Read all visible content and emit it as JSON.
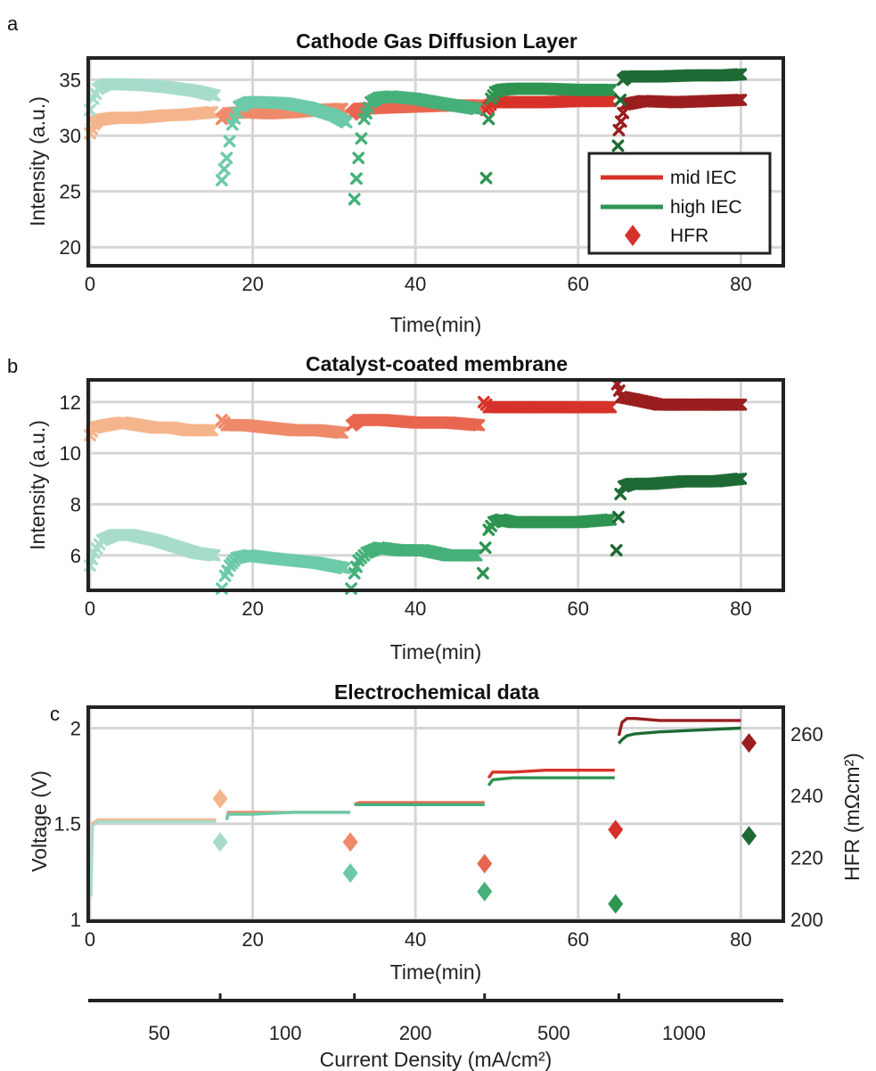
{
  "panel_labels": [
    "a",
    "b",
    "c"
  ],
  "segment_colors": {
    "mid": [
      "#f5b58c",
      "#ee8a6a",
      "#e8664f",
      "#d7322a",
      "#9a1e1e"
    ],
    "high": [
      "#a7dccd",
      "#6ccaa8",
      "#45b07a",
      "#2e9451",
      "#1e6a34"
    ]
  },
  "chart_data": [
    {
      "type": "scatter",
      "title": "Cathode Gas Diffusion Layer",
      "xlabel": "Time(min)",
      "ylabel": "Intensity (a.u.)",
      "xlim": [
        0,
        85
      ],
      "ylim": [
        18.5,
        36.8
      ],
      "xticks": [
        0,
        20,
        40,
        60,
        80
      ],
      "yticks": [
        20,
        25,
        30,
        35
      ],
      "grid": true,
      "marker": "x",
      "legend": {
        "placement": "lower-right",
        "entries": [
          {
            "label": "mid IEC",
            "kind": "line",
            "color": "#d7322a"
          },
          {
            "label": "high IEC",
            "kind": "line",
            "color": "#2e9451"
          },
          {
            "label": "HFR",
            "kind": "diamond",
            "color": "#d7322a"
          }
        ]
      },
      "series": [
        {
          "group": "mid",
          "segments": [
            {
              "x": [
                0,
                0.5,
                1,
                3,
                6,
                9,
                12,
                15
              ],
              "y": [
                30.2,
                31.0,
                31.4,
                31.6,
                31.6,
                31.8,
                31.9,
                32.1
              ]
            },
            {
              "x": [
                16.2,
                17,
                19,
                22,
                25,
                28,
                31
              ],
              "y": [
                31.5,
                32.0,
                32.1,
                32.0,
                32.1,
                32.3,
                32.4
              ]
            },
            {
              "x": [
                32.2,
                33,
                36,
                40,
                44,
                48
              ],
              "y": [
                31.9,
                32.4,
                32.5,
                32.6,
                32.7,
                32.7
              ]
            },
            {
              "x": [
                48.7,
                49.5,
                52,
                56,
                60,
                64
              ],
              "y": [
                32.3,
                33.0,
                33.0,
                33.0,
                33.1,
                33.1
              ]
            },
            {
              "x": [
                65,
                65.8,
                68,
                72,
                76,
                80
              ],
              "y": [
                30.5,
                32.8,
                33.1,
                33.0,
                33.1,
                33.2
              ]
            }
          ]
        },
        {
          "group": "high",
          "segments": [
            {
              "x": [
                0,
                0.4,
                1,
                2,
                4,
                7,
                10,
                13,
                15.3
              ],
              "y": [
                32.3,
                33.3,
                34.2,
                34.6,
                34.6,
                34.5,
                34.3,
                34.0,
                33.6
              ]
            },
            {
              "x": [
                16.2,
                16.8,
                17.5,
                18.3,
                19.5,
                21,
                24,
                27,
                30,
                31.5
              ],
              "y": [
                26.0,
                28.0,
                31.0,
                32.6,
                33.0,
                33.0,
                32.9,
                32.5,
                31.8,
                31.2
              ]
            },
            {
              "x": [
                32.5,
                33,
                33.7,
                34.5,
                35.5,
                37,
                40,
                44,
                47.5
              ],
              "y": [
                24.3,
                28.0,
                31.5,
                33.0,
                33.4,
                33.5,
                33.3,
                32.8,
                32.4
              ]
            },
            {
              "x": [
                48.7,
                49,
                49.3,
                49.8,
                50.5,
                52,
                56,
                60,
                64
              ],
              "y": [
                26.2,
                31.5,
                33.3,
                33.9,
                34.1,
                34.2,
                34.2,
                34.1,
                34.1
              ]
            },
            {
              "x": [
                64.9,
                65.2,
                65.5,
                66,
                67,
                70,
                74,
                78,
                80
              ],
              "y": [
                29.1,
                33.2,
                35.0,
                35.3,
                35.3,
                35.3,
                35.4,
                35.4,
                35.5
              ]
            }
          ]
        }
      ]
    },
    {
      "type": "scatter",
      "title": "Catalyst-coated membrane",
      "xlabel": "Time(min)",
      "ylabel": "Intensity (a.u.)",
      "xlim": [
        0,
        85
      ],
      "ylim": [
        4.7,
        12.8
      ],
      "xticks": [
        0,
        20,
        40,
        60,
        80
      ],
      "yticks": [
        6,
        8,
        10,
        12
      ],
      "grid": true,
      "marker": "x",
      "series": [
        {
          "group": "mid",
          "segments": [
            {
              "x": [
                0,
                0.5,
                2,
                4,
                6,
                8,
                10,
                12,
                15
              ],
              "y": [
                10.7,
                11.0,
                11.1,
                11.2,
                11.1,
                11.0,
                11.0,
                10.9,
                10.9
              ]
            },
            {
              "x": [
                16.2,
                16.8,
                19,
                22,
                25,
                28,
                31
              ],
              "y": [
                11.3,
                11.1,
                11.1,
                11.0,
                10.9,
                10.9,
                10.8
              ]
            },
            {
              "x": [
                32.2,
                33,
                36,
                40,
                44,
                47.8
              ],
              "y": [
                11.1,
                11.3,
                11.3,
                11.2,
                11.2,
                11.1
              ]
            },
            {
              "x": [
                48.4,
                49,
                52,
                56,
                60,
                64
              ],
              "y": [
                12.0,
                11.8,
                11.8,
                11.8,
                11.8,
                11.8
              ]
            },
            {
              "x": [
                64.8,
                65.3,
                67,
                70,
                74,
                78,
                80
              ],
              "y": [
                12.7,
                12.2,
                12.1,
                11.9,
                11.9,
                11.9,
                11.9
              ]
            }
          ]
        },
        {
          "group": "high",
          "segments": [
            {
              "x": [
                0,
                0.5,
                1.5,
                3,
                5,
                8,
                11,
                13,
                15.3
              ],
              "y": [
                5.6,
                6.1,
                6.6,
                6.8,
                6.8,
                6.6,
                6.3,
                6.1,
                6.0
              ]
            },
            {
              "x": [
                16.2,
                16.6,
                17.2,
                18,
                19.5,
                22,
                25,
                28,
                31.3
              ],
              "y": [
                4.7,
                5.2,
                5.6,
                5.9,
                6.0,
                5.9,
                5.8,
                5.7,
                5.5
              ]
            },
            {
              "x": [
                32.1,
                32.5,
                33,
                34,
                35.5,
                38,
                41,
                44,
                47.5
              ],
              "y": [
                4.7,
                5.3,
                5.8,
                6.1,
                6.3,
                6.2,
                6.2,
                6.0,
                6.0
              ]
            },
            {
              "x": [
                48.3,
                48.6,
                49,
                49.6,
                50.5,
                52,
                56,
                60,
                64
              ],
              "y": [
                5.3,
                6.3,
                7.0,
                7.3,
                7.4,
                7.3,
                7.3,
                7.3,
                7.4
              ]
            },
            {
              "x": [
                64.7,
                64.95,
                65.2,
                65.6,
                66.5,
                69,
                73,
                77,
                80
              ],
              "y": [
                6.2,
                7.5,
                8.4,
                8.7,
                8.8,
                8.8,
                8.9,
                8.9,
                9.0
              ]
            }
          ]
        }
      ]
    },
    {
      "type": "line",
      "title": "Electrochemical data",
      "xlabel": "Time(min)",
      "ylabel": "Voltage (V)",
      "y2label": "HFR (mΩcm²)",
      "xlim": [
        0,
        85
      ],
      "ylim": [
        1.0,
        2.1
      ],
      "y2lim": [
        200,
        268
      ],
      "xticks": [
        0,
        20,
        40,
        60,
        80
      ],
      "yticks": [
        1,
        1.5,
        2
      ],
      "y2ticks": [
        200,
        220,
        240,
        260
      ],
      "grid": true,
      "voltage": [
        {
          "group": "mid",
          "segments": [
            {
              "x": [
                0.1,
                0.3,
                1,
                5,
                10,
                15.5
              ],
              "y": [
                1.12,
                1.5,
                1.52,
                1.52,
                1.52,
                1.52
              ]
            },
            {
              "x": [
                16.8,
                17,
                20,
                25,
                30,
                32
              ],
              "y": [
                1.52,
                1.56,
                1.56,
                1.56,
                1.56,
                1.56
              ]
            },
            {
              "x": [
                32.5,
                33,
                36,
                40,
                44,
                48.5
              ],
              "y": [
                1.6,
                1.61,
                1.61,
                1.61,
                1.61,
                1.61
              ]
            },
            {
              "x": [
                49,
                49.5,
                52,
                56,
                60,
                64.5
              ],
              "y": [
                1.74,
                1.77,
                1.77,
                1.78,
                1.78,
                1.78
              ]
            },
            {
              "x": [
                65,
                65.4,
                66,
                67,
                70,
                75,
                80
              ],
              "y": [
                1.96,
                2.03,
                2.05,
                2.05,
                2.04,
                2.04,
                2.04
              ]
            }
          ]
        },
        {
          "group": "high",
          "segments": [
            {
              "x": [
                0.1,
                0.3,
                1,
                5,
                10,
                15.5
              ],
              "y": [
                1.12,
                1.49,
                1.51,
                1.51,
                1.51,
                1.51
              ]
            },
            {
              "x": [
                16.8,
                17,
                20,
                25,
                30,
                32
              ],
              "y": [
                1.52,
                1.55,
                1.55,
                1.56,
                1.56,
                1.56
              ]
            },
            {
              "x": [
                32.5,
                33,
                36,
                40,
                44,
                48.5
              ],
              "y": [
                1.6,
                1.6,
                1.6,
                1.6,
                1.6,
                1.6
              ]
            },
            {
              "x": [
                49,
                49.5,
                52,
                56,
                60,
                64.5
              ],
              "y": [
                1.7,
                1.73,
                1.74,
                1.74,
                1.74,
                1.74
              ]
            },
            {
              "x": [
                65,
                65.4,
                66,
                67,
                70,
                75,
                80
              ],
              "y": [
                1.92,
                1.94,
                1.96,
                1.97,
                1.98,
                1.99,
                2.0
              ]
            }
          ]
        }
      ],
      "hfr": [
        {
          "group": "mid",
          "x": [
            16,
            32,
            48.5,
            64.6,
            81
          ],
          "y": [
            239,
            225,
            218,
            229,
            257
          ]
        },
        {
          "group": "high",
          "x": [
            16,
            32,
            48.5,
            64.6,
            81
          ],
          "y": [
            225,
            215,
            209,
            205,
            227
          ]
        }
      ],
      "secondary_axis": {
        "label": "Current Density (mA/cm²)",
        "tick_labels": [
          "50",
          "100",
          "200",
          "500",
          "1000"
        ],
        "label_positions": [
          8.5,
          24,
          40,
          57,
          73
        ],
        "boundaries": [
          16,
          32.5,
          48.5,
          65
        ]
      }
    }
  ]
}
